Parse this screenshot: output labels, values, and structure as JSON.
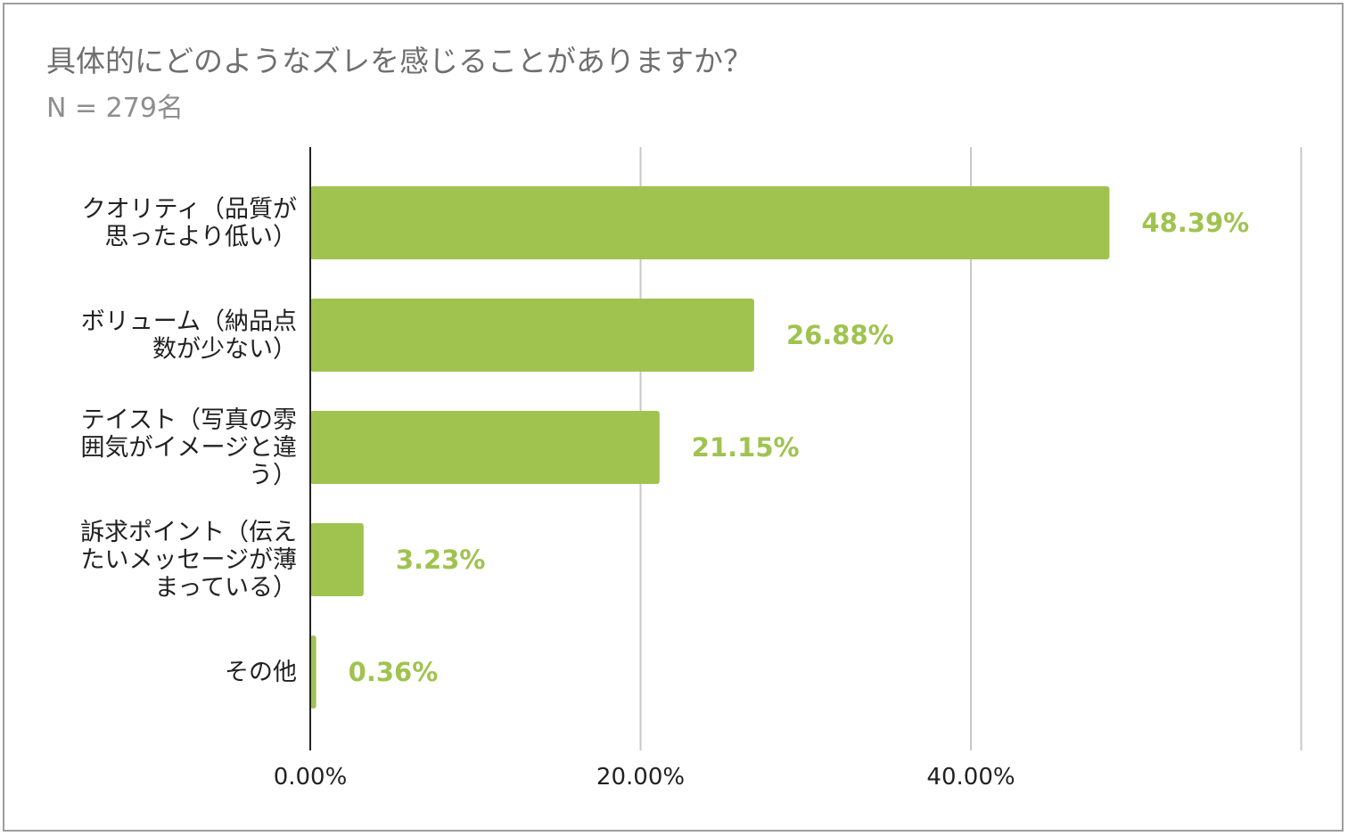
{
  "chart_data": {
    "type": "bar",
    "orientation": "horizontal",
    "title": "具体的にどのようなズレを感じることがありますか？",
    "subtitle": "N = 279名",
    "categories": [
      [
        "クオリティ（品質が",
        "思ったより低い）"
      ],
      [
        "ボリューム（納品点",
        "数が少ない）"
      ],
      [
        "テイスト（写真の雰",
        "囲気がイメージと違",
        "う）"
      ],
      [
        "訴求ポイント（伝え",
        "たいメッセージが薄",
        "まっている）"
      ],
      [
        "その他"
      ]
    ],
    "values": [
      48.39,
      26.88,
      21.15,
      3.23,
      0.36
    ],
    "value_labels": [
      "48.39%",
      "26.88%",
      "21.15%",
      "3.23%",
      "0.36%"
    ],
    "xlim": [
      0,
      60
    ],
    "xticks": [
      0,
      20,
      40
    ],
    "xtick_labels": [
      "0.00%",
      "20.00%",
      "40.00%"
    ],
    "grid": true,
    "bar_color": "#a0c350",
    "label_color": "#a0c350"
  }
}
